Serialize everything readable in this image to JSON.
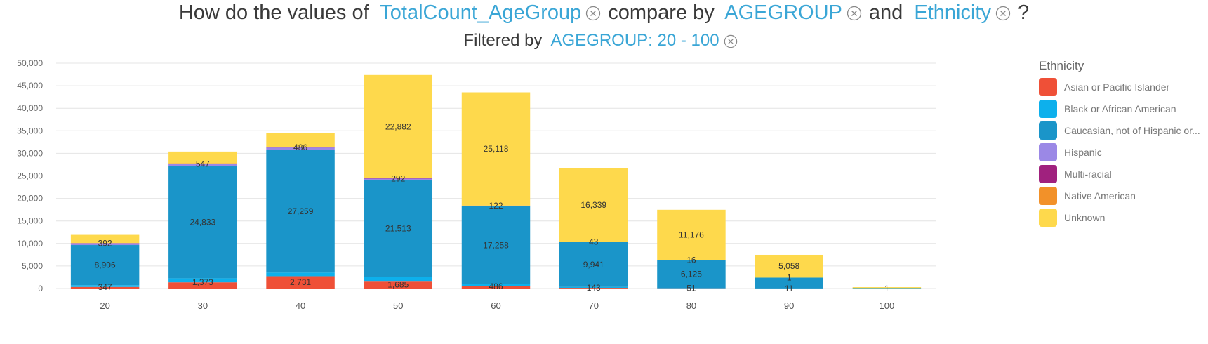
{
  "header": {
    "question_prefix": "How do the values of",
    "measure": "TotalCount_AgeGroup",
    "compare_by": "compare by",
    "dim1": "AGEGROUP",
    "and_word": "and",
    "dim2": "Ethnicity",
    "question_mark": "?",
    "filter_prefix": "Filtered by",
    "filter_value": "AGEGROUP: 20 - 100"
  },
  "legend": {
    "title": "Ethnicity",
    "items": [
      {
        "label": "Asian or Pacific Islander",
        "color": "#EF5037"
      },
      {
        "label": "Black or African American",
        "color": "#0DB0EC"
      },
      {
        "label": "Caucasian, not of Hispanic or...",
        "color": "#1A95C9"
      },
      {
        "label": "Hispanic",
        "color": "#9B88E6"
      },
      {
        "label": "Multi-racial",
        "color": "#A0217E"
      },
      {
        "label": "Native American",
        "color": "#F29129"
      },
      {
        "label": "Unknown",
        "color": "#FED94C"
      }
    ]
  },
  "chart_data": {
    "type": "bar",
    "stacked": true,
    "categories": [
      "20",
      "30",
      "40",
      "50",
      "60",
      "70",
      "80",
      "90",
      "100"
    ],
    "ylim": [
      0,
      50000
    ],
    "yticks": [
      0,
      5000,
      10000,
      15000,
      20000,
      25000,
      30000,
      35000,
      40000,
      45000,
      50000
    ],
    "ytick_labels": [
      "0",
      "5,000",
      "10,000",
      "15,000",
      "20,000",
      "25,000",
      "30,000",
      "35,000",
      "40,000",
      "45,000",
      "50,000"
    ],
    "grid": true,
    "legend_position": "right",
    "series": [
      {
        "name": "Asian or Pacific Islander",
        "color": "#EF5037",
        "values": [
          347,
          1373,
          2731,
          1685,
          486,
          143,
          51,
          11,
          1
        ]
      },
      {
        "name": "Black or African American",
        "color": "#0DB0EC",
        "values": [
          400,
          900,
          800,
          900,
          500,
          200,
          100,
          10,
          0
        ]
      },
      {
        "name": "Caucasian, not of Hispanic or...",
        "color": "#1A95C9",
        "values": [
          8906,
          24833,
          27259,
          21513,
          17258,
          9941,
          6125,
          2400,
          100
        ]
      },
      {
        "name": "Hispanic",
        "color": "#9B88E6",
        "values": [
          392,
          547,
          486,
          292,
          122,
          43,
          16,
          1,
          0
        ]
      },
      {
        "name": "Multi-racial",
        "color": "#A0217E",
        "values": [
          40,
          90,
          80,
          80,
          30,
          10,
          5,
          0,
          0
        ]
      },
      {
        "name": "Native American",
        "color": "#F29129",
        "values": [
          20,
          50,
          40,
          30,
          20,
          5,
          2,
          0,
          0
        ]
      },
      {
        "name": "Unknown",
        "color": "#FED94C",
        "values": [
          1800,
          2600,
          3100,
          22882,
          25118,
          16339,
          11176,
          5058,
          200
        ]
      }
    ],
    "data_labels": [
      {
        "category": "20",
        "series": "Asian or Pacific Islander",
        "text": "347"
      },
      {
        "category": "20",
        "series": "Caucasian, not of Hispanic or...",
        "text": "8,906"
      },
      {
        "category": "20",
        "series": "Hispanic",
        "text": "392"
      },
      {
        "category": "30",
        "series": "Asian or Pacific Islander",
        "text": "1,373"
      },
      {
        "category": "30",
        "series": "Caucasian, not of Hispanic or...",
        "text": "24,833"
      },
      {
        "category": "30",
        "series": "Hispanic",
        "text": "547"
      },
      {
        "category": "40",
        "series": "Asian or Pacific Islander",
        "text": "2,731"
      },
      {
        "category": "40",
        "series": "Caucasian, not of Hispanic or...",
        "text": "27,259"
      },
      {
        "category": "40",
        "series": "Hispanic",
        "text": "486"
      },
      {
        "category": "50",
        "series": "Asian or Pacific Islander",
        "text": "1,685"
      },
      {
        "category": "50",
        "series": "Caucasian, not of Hispanic or...",
        "text": "21,513"
      },
      {
        "category": "50",
        "series": "Hispanic",
        "text": "292"
      },
      {
        "category": "50",
        "series": "Unknown",
        "text": "22,882"
      },
      {
        "category": "60",
        "series": "Asian or Pacific Islander",
        "text": "486"
      },
      {
        "category": "60",
        "series": "Caucasian, not of Hispanic or...",
        "text": "17,258"
      },
      {
        "category": "60",
        "series": "Hispanic",
        "text": "122"
      },
      {
        "category": "60",
        "series": "Unknown",
        "text": "25,118"
      },
      {
        "category": "70",
        "series": "Asian or Pacific Islander",
        "text": "143"
      },
      {
        "category": "70",
        "series": "Caucasian, not of Hispanic or...",
        "text": "9,941"
      },
      {
        "category": "70",
        "series": "Hispanic",
        "text": "43"
      },
      {
        "category": "70",
        "series": "Unknown",
        "text": "16,339"
      },
      {
        "category": "80",
        "series": "Asian or Pacific Islander",
        "text": "51"
      },
      {
        "category": "80",
        "series": "Caucasian, not of Hispanic or...",
        "text": "6,125"
      },
      {
        "category": "80",
        "series": "Hispanic",
        "text": "16"
      },
      {
        "category": "80",
        "series": "Unknown",
        "text": "11,176"
      },
      {
        "category": "90",
        "series": "Asian or Pacific Islander",
        "text": "11"
      },
      {
        "category": "90",
        "series": "Hispanic",
        "text": "1"
      },
      {
        "category": "90",
        "series": "Unknown",
        "text": "5,058"
      },
      {
        "category": "100",
        "series": "Asian or Pacific Islander",
        "text": "1"
      }
    ]
  }
}
